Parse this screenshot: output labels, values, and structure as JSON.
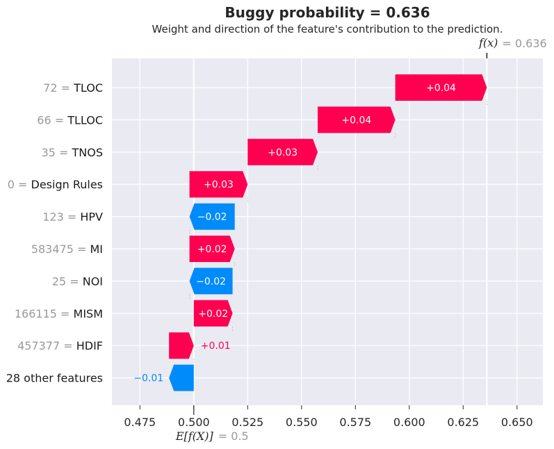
{
  "chart_data": {
    "type": "waterfall",
    "title": "Buggy probability = 0.636",
    "subtitle": "Weight and direction of the feature's contribution to the prediction.",
    "fx_label": "f(x)",
    "fx_value_text": "= 0.636",
    "fx_value": 0.636,
    "ex_label": "E[f(X)]",
    "ex_value_text": "= 0.5",
    "ex_value": 0.5,
    "xlim": [
      0.462,
      0.662
    ],
    "xticks": [
      0.475,
      0.5,
      0.525,
      0.55,
      0.575,
      0.6,
      0.625,
      0.65
    ],
    "xtick_labels": [
      "0.475",
      "0.500",
      "0.525",
      "0.550",
      "0.575",
      "0.600",
      "0.625",
      "0.650"
    ],
    "colors": {
      "positive": "#ff0051",
      "negative": "#008bfb",
      "grid": "#ffffff",
      "background": "#eaeaf2"
    },
    "features": [
      {
        "value": "72",
        "name": "TLOC",
        "start": 0.5935,
        "end": 0.636,
        "label": "+0.04",
        "label_inside": true
      },
      {
        "value": "66",
        "name": "TLLOC",
        "start": 0.5575,
        "end": 0.5935,
        "label": "+0.04",
        "label_inside": true
      },
      {
        "value": "35",
        "name": "TNOS",
        "start": 0.525,
        "end": 0.5575,
        "label": "+0.03",
        "label_inside": true
      },
      {
        "value": "0",
        "name": "Design Rules",
        "start": 0.498,
        "end": 0.525,
        "label": "+0.03",
        "label_inside": true
      },
      {
        "value": "123",
        "name": "HPV",
        "start": 0.519,
        "end": 0.498,
        "label": "−0.02",
        "label_inside": true
      },
      {
        "value": "583475",
        "name": "MI",
        "start": 0.498,
        "end": 0.519,
        "label": "+0.02",
        "label_inside": true
      },
      {
        "value": "25",
        "name": "NOI",
        "start": 0.518,
        "end": 0.498,
        "label": "−0.02",
        "label_inside": true
      },
      {
        "value": "166115",
        "name": "MISM",
        "start": 0.5,
        "end": 0.518,
        "label": "+0.02",
        "label_inside": true
      },
      {
        "value": "457377",
        "name": "HDIF",
        "start": 0.4885,
        "end": 0.5,
        "label": "+0.01",
        "label_inside": false
      },
      {
        "value": "",
        "name": "28 other features",
        "start": 0.5,
        "end": 0.4885,
        "label": "−0.01",
        "label_inside": false
      }
    ]
  }
}
